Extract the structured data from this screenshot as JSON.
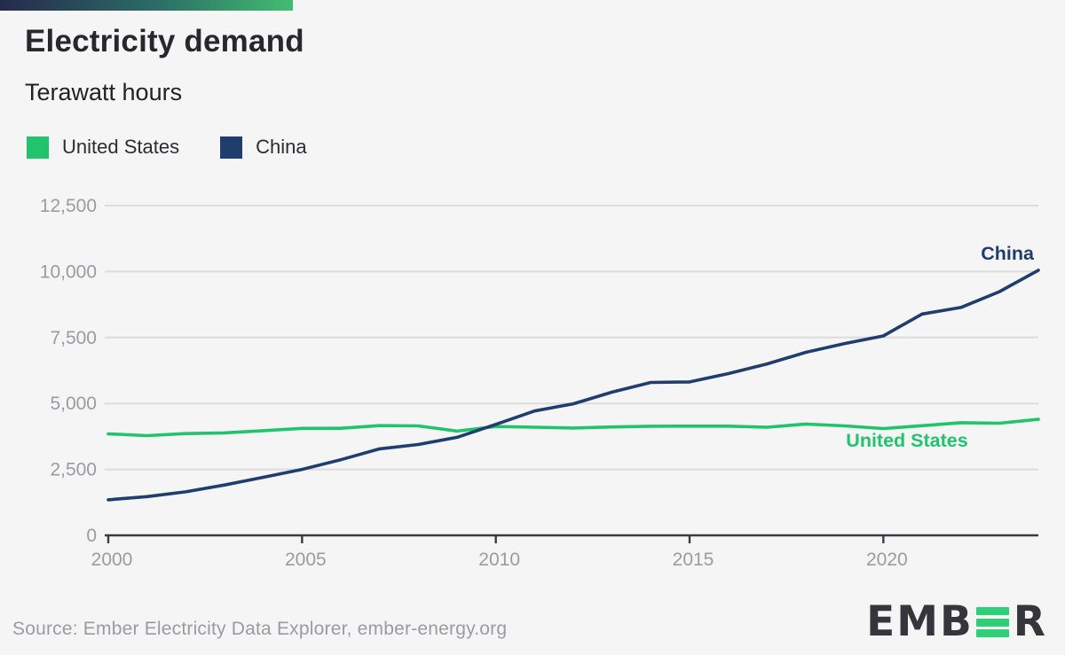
{
  "page": {
    "background": "#f5f5f6",
    "accent_bar_gradient": [
      "#26294d",
      "#2c6f66",
      "#43bd71"
    ]
  },
  "header": {
    "title": "Electricity demand",
    "subtitle": "Terawatt hours"
  },
  "legend": [
    {
      "label": "United States",
      "color": "#22c36d"
    },
    {
      "label": "China",
      "color": "#1f3e6d"
    }
  ],
  "chart_data": {
    "type": "line",
    "title": "Electricity demand",
    "ylabel": "Terawatt hours",
    "xlabel": "",
    "grid": "horizontal",
    "xlim": [
      2000,
      2024
    ],
    "ylim": [
      0,
      12500
    ],
    "x": [
      2000,
      2001,
      2002,
      2003,
      2004,
      2005,
      2006,
      2007,
      2008,
      2009,
      2010,
      2011,
      2012,
      2013,
      2014,
      2015,
      2016,
      2017,
      2018,
      2019,
      2020,
      2021,
      2022,
      2023,
      2024
    ],
    "series": [
      {
        "name": "United States",
        "color": "#22c36d",
        "values": [
          3849,
          3780,
          3858,
          3885,
          3970,
          4055,
          4060,
          4160,
          4150,
          3950,
          4125,
          4100,
          4070,
          4110,
          4137,
          4140,
          4140,
          4100,
          4222,
          4150,
          4050,
          4155,
          4270,
          4250,
          4400
        ]
      },
      {
        "name": "China",
        "color": "#1f3e6d",
        "values": [
          1347,
          1470,
          1650,
          1910,
          2200,
          2500,
          2866,
          3280,
          3444,
          3715,
          4207,
          4715,
          4986,
          5430,
          5795,
          5815,
          6133,
          6500,
          6940,
          7270,
          7560,
          8390,
          8640,
          9240,
          10050
        ]
      }
    ],
    "y_ticks": [
      {
        "value": 0,
        "label": "0"
      },
      {
        "value": 2500,
        "label": "2,500"
      },
      {
        "value": 5000,
        "label": "5,000"
      },
      {
        "value": 7500,
        "label": "7,500"
      },
      {
        "value": 10000,
        "label": "10,000"
      },
      {
        "value": 12500,
        "label": "12,500"
      }
    ],
    "x_ticks": [
      {
        "value": 2000,
        "label": "2000"
      },
      {
        "value": 2005,
        "label": "2005"
      },
      {
        "value": 2010,
        "label": "2010"
      },
      {
        "value": 2015,
        "label": "2015"
      },
      {
        "value": 2020,
        "label": "2020"
      }
    ],
    "annotations": [
      {
        "text": "China",
        "x": 1165,
        "y": 293,
        "anchor": "end",
        "color": "#1f3e6d"
      },
      {
        "text": "United States",
        "x": 1022,
        "y": 504,
        "anchor": "middle",
        "color": "#22c36d"
      }
    ],
    "legend_position": "top-left"
  },
  "footer": {
    "source": "Source: Ember Electricity Data Explorer, ember-energy.org",
    "logo": {
      "prefix": "EMB",
      "suffix": "R",
      "green_e_bars": 3,
      "bar_color": "#2ecf77"
    }
  }
}
